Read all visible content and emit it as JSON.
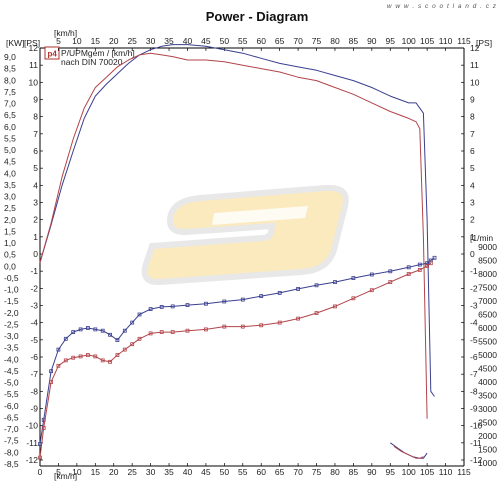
{
  "header": {
    "title": "Power - Diagram",
    "watermark": "w w w . s c o o t l a n d . c z"
  },
  "legend": {
    "badge": "p4",
    "line1": "P/UPMgem / [km/h]",
    "line2": "nach DIN 70020"
  },
  "axes": {
    "left_kw_unit": "[KW]",
    "left_ps_unit": "[PS]",
    "top_unit": "[km/h]",
    "bottom_unit": "[km/h]",
    "right_rpm_unit": "[1/min",
    "right_ps_unit": "[PS]"
  },
  "colors": {
    "blue": "#3a3f8f",
    "red": "#b2444a",
    "logo_yellow": "#f6d98a",
    "logo_gray": "#cfcfcf"
  },
  "chart_data": {
    "type": "line",
    "title": "Power - Diagram",
    "x_unit": "[km/h]",
    "xlim": [
      0,
      115
    ],
    "x_ticks": [
      "0",
      "5",
      "10",
      "15",
      "20",
      "25",
      "30",
      "35",
      "40",
      "45",
      "50",
      "55",
      "60",
      "65",
      "70",
      "75",
      "80",
      "85",
      "90",
      "95",
      "100",
      "105",
      "110",
      "115"
    ],
    "left_kw_ticks": [
      "9,0",
      "8,5",
      "8,0",
      "7,5",
      "7,0",
      "6,5",
      "6,0",
      "5,5",
      "5,0",
      "4,5",
      "4,0",
      "3,5",
      "3,0",
      "2,5",
      "2,0",
      "1,5",
      "1,0",
      "0,5",
      "0,0",
      "-0,5",
      "-1,0",
      "-1,5",
      "-2,0",
      "-2,5",
      "-3,0",
      "-3,5",
      "-4,0",
      "-4,5",
      "-5,0",
      "-5,5",
      "-6,0",
      "-6,5",
      "-7,0",
      "-7,5",
      "-8,0",
      "-8,5"
    ],
    "ps_ticks": [
      "12",
      "11",
      "10",
      "9",
      "8",
      "7",
      "6",
      "5",
      "4",
      "3",
      "2",
      "1",
      "0",
      "-1",
      "-2",
      "-3",
      "-4",
      "-5",
      "-6",
      "-7",
      "-8",
      "-9",
      "-10",
      "-11",
      "-12"
    ],
    "rpm_ticks": [
      "9000",
      "8500",
      "8000",
      "7500",
      "7000",
      "6500",
      "6000",
      "5500",
      "5000",
      "4500",
      "4000",
      "3500",
      "3000",
      "2500",
      "2000",
      "1500",
      "1000"
    ],
    "ylim_ps": [
      -12,
      12
    ],
    "ylim_rpm": [
      500,
      9000
    ],
    "series": [
      {
        "color": "#3a3f8f",
        "axis": "ps",
        "x": [
          0,
          3,
          6,
          9,
          12,
          15,
          18,
          21,
          24,
          27,
          30,
          33,
          36,
          40,
          45,
          50,
          55,
          60,
          65,
          70,
          75,
          80,
          85,
          90,
          95,
          100,
          102,
          104,
          105,
          106,
          107
        ],
        "y": [
          -0.5,
          1.7,
          4.0,
          6.0,
          7.9,
          9.2,
          9.9,
          10.5,
          11.1,
          11.6,
          11.9,
          12.1,
          12.2,
          12.2,
          12.1,
          11.9,
          11.7,
          11.4,
          11.1,
          10.9,
          10.7,
          10.4,
          10.1,
          9.7,
          9.2,
          8.8,
          8.8,
          8.2,
          2.0,
          -8.0,
          -8.3
        ]
      },
      {
        "color": "#b2444a",
        "axis": "ps",
        "x": [
          0,
          3,
          6,
          9,
          12,
          15,
          18,
          21,
          24,
          27,
          30,
          33,
          36,
          40,
          45,
          50,
          55,
          60,
          65,
          70,
          75,
          80,
          85,
          90,
          95,
          100,
          102,
          103,
          104,
          105
        ],
        "y": [
          -0.5,
          1.8,
          4.5,
          6.7,
          8.5,
          9.7,
          10.3,
          10.9,
          11.3,
          11.6,
          11.7,
          11.6,
          11.5,
          11.3,
          11.3,
          11.2,
          11.0,
          10.8,
          10.6,
          10.3,
          10.1,
          9.7,
          9.3,
          8.8,
          8.3,
          7.9,
          7.7,
          7.3,
          1.0,
          -9.6
        ]
      },
      {
        "color": "#3a3f8f",
        "axis": "rpm",
        "x": [
          0,
          1,
          3,
          5,
          7,
          9,
          11,
          13,
          15,
          17,
          19,
          21,
          23,
          25,
          27,
          30,
          33,
          36,
          40,
          45,
          50,
          55,
          60,
          65,
          70,
          75,
          80,
          85,
          90,
          95,
          100,
          103,
          105,
          106,
          107
        ],
        "y": [
          1700,
          2600,
          4400,
          5200,
          5600,
          5850,
          5950,
          6000,
          5950,
          5900,
          5750,
          5550,
          5900,
          6200,
          6500,
          6700,
          6780,
          6800,
          6850,
          6900,
          6980,
          7050,
          7180,
          7300,
          7450,
          7580,
          7700,
          7850,
          7980,
          8100,
          8250,
          8350,
          8400,
          8500,
          8600
        ]
      },
      {
        "color": "#b2444a",
        "axis": "rpm",
        "x": [
          0,
          1,
          3,
          5,
          7,
          9,
          11,
          13,
          15,
          17,
          19,
          21,
          23,
          25,
          27,
          30,
          33,
          36,
          40,
          45,
          50,
          55,
          60,
          65,
          70,
          75,
          80,
          85,
          90,
          95,
          100,
          103,
          105,
          106
        ],
        "y": [
          1200,
          2300,
          4000,
          4600,
          4800,
          4900,
          4950,
          5000,
          4950,
          4800,
          4750,
          5000,
          5200,
          5400,
          5600,
          5800,
          5850,
          5850,
          5900,
          5950,
          6050,
          6050,
          6100,
          6200,
          6350,
          6550,
          6800,
          7100,
          7400,
          7700,
          8000,
          8150,
          8300,
          8400
        ]
      },
      {
        "color": "#3a3f8f",
        "axis": "ps",
        "x": [
          95,
          97,
          99,
          101,
          103,
          104,
          105
        ],
        "y": [
          -11.0,
          -11.3,
          -11.6,
          -11.8,
          -11.9,
          -11.9,
          -11.6
        ]
      },
      {
        "color": "#b2444a",
        "axis": "ps",
        "x": [
          96,
          98,
          100,
          102,
          103,
          104
        ],
        "y": [
          -11.2,
          -11.5,
          -11.7,
          -11.9,
          -11.9,
          -11.8
        ]
      }
    ],
    "grid": false
  }
}
